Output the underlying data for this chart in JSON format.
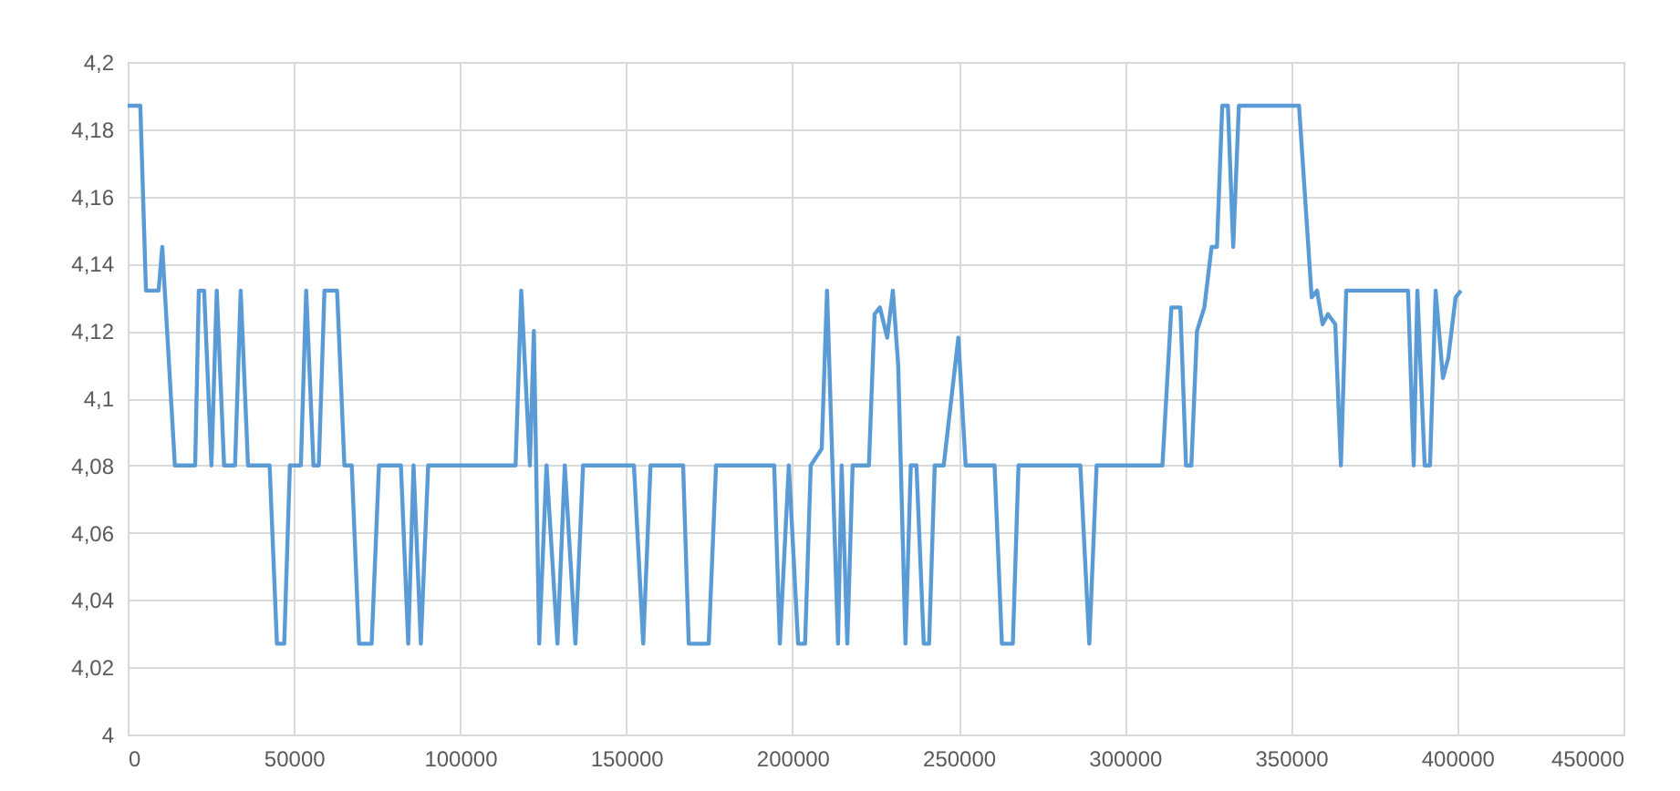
{
  "chart_data": {
    "type": "line",
    "xlim": [
      0,
      450000
    ],
    "xticks": [
      0,
      50000,
      100000,
      150000,
      200000,
      250000,
      300000,
      350000,
      400000,
      450000
    ],
    "ylim": [
      4,
      4.2
    ],
    "yticks": [
      {
        "value": 4,
        "label": "4"
      },
      {
        "value": 4.02,
        "label": "4,02"
      },
      {
        "value": 4.04,
        "label": "4,04"
      },
      {
        "value": 4.06,
        "label": "4,06"
      },
      {
        "value": 4.08,
        "label": "4,08"
      },
      {
        "value": 4.1,
        "label": "4,1"
      },
      {
        "value": 4.12,
        "label": "4,12"
      },
      {
        "value": 4.14,
        "label": "4,14"
      },
      {
        "value": 4.16,
        "label": "4,16"
      },
      {
        "value": 4.18,
        "label": "4,18"
      },
      {
        "value": 4.2,
        "label": "4,2"
      }
    ],
    "grid": true,
    "line_style": "solid",
    "x": [
      0,
      3800,
      5500,
      9300,
      10400,
      14200,
      20300,
      21400,
      23000,
      25200,
      26800,
      29000,
      32300,
      34000,
      36200,
      42700,
      44900,
      47100,
      48800,
      52100,
      53700,
      55900,
      57500,
      59200,
      63000,
      65200,
      67400,
      69600,
      73400,
      75600,
      82200,
      84400,
      86000,
      88200,
      90400,
      116700,
      118400,
      120000,
      121000,
      122200,
      123800,
      126000,
      129300,
      131500,
      134700,
      137000,
      152300,
      155100,
      157300,
      167100,
      168800,
      174800,
      177000,
      194500,
      196200,
      198900,
      201700,
      203800,
      205500,
      208800,
      210400,
      213700,
      214800,
      216500,
      218100,
      223000,
      224700,
      226300,
      228500,
      230200,
      231800,
      234000,
      235600,
      237300,
      239500,
      241100,
      242800,
      245500,
      249900,
      252100,
      260800,
      263000,
      266300,
      268000,
      286600,
      289300,
      291500,
      311300,
      314000,
      316700,
      318400,
      320000,
      321700,
      323900,
      326100,
      327700,
      329300,
      331000,
      332600,
      334300,
      352400,
      356200,
      357800,
      359500,
      361100,
      363300,
      365000,
      366600,
      385200,
      386900,
      388000,
      390200,
      391800,
      393500,
      395700,
      397300,
      399500,
      401100
    ],
    "series": [
      {
        "color": "#5b9bd5",
        "values": [
          4.187,
          4.187,
          4.132,
          4.132,
          4.145,
          4.08,
          4.08,
          4.132,
          4.132,
          4.08,
          4.132,
          4.08,
          4.08,
          4.132,
          4.08,
          4.08,
          4.027,
          4.027,
          4.08,
          4.08,
          4.132,
          4.08,
          4.08,
          4.132,
          4.132,
          4.08,
          4.08,
          4.027,
          4.027,
          4.08,
          4.08,
          4.027,
          4.08,
          4.027,
          4.08,
          4.08,
          4.132,
          4.1,
          4.08,
          4.12,
          4.027,
          4.08,
          4.027,
          4.08,
          4.027,
          4.08,
          4.08,
          4.027,
          4.08,
          4.08,
          4.027,
          4.027,
          4.08,
          4.08,
          4.027,
          4.08,
          4.027,
          4.027,
          4.08,
          4.085,
          4.132,
          4.027,
          4.08,
          4.027,
          4.08,
          4.08,
          4.125,
          4.127,
          4.118,
          4.132,
          4.11,
          4.027,
          4.08,
          4.08,
          4.027,
          4.027,
          4.08,
          4.08,
          4.118,
          4.08,
          4.08,
          4.027,
          4.027,
          4.08,
          4.08,
          4.027,
          4.08,
          4.08,
          4.127,
          4.127,
          4.08,
          4.08,
          4.12,
          4.127,
          4.145,
          4.145,
          4.187,
          4.187,
          4.145,
          4.187,
          4.187,
          4.13,
          4.132,
          4.122,
          4.125,
          4.122,
          4.08,
          4.132,
          4.132,
          4.08,
          4.132,
          4.08,
          4.08,
          4.132,
          4.106,
          4.112,
          4.13,
          4.132
        ]
      }
    ]
  }
}
